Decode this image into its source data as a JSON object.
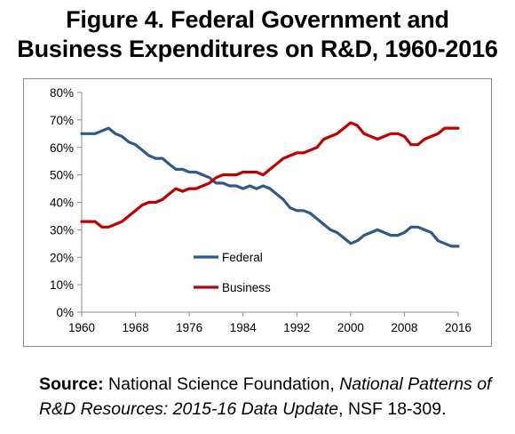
{
  "title_line1": "Figure 4. Federal Government and",
  "title_line2": "Business Expenditures on R&D, 1960-2016",
  "source": {
    "label": "Source:",
    "text1": " National Science Foundation, ",
    "italic": "National Patterns of R&D Resources: 2015-16 Data Update",
    "text2": ", NSF 18-309."
  },
  "chart_data": {
    "type": "line",
    "title": "",
    "xlabel": "",
    "ylabel": "",
    "xlim": [
      1960,
      2016
    ],
    "ylim": [
      0,
      80
    ],
    "x_ticks": [
      1960,
      1968,
      1976,
      1984,
      1992,
      2000,
      2008,
      2016
    ],
    "y_ticks": [
      0,
      10,
      20,
      30,
      40,
      50,
      60,
      70,
      80
    ],
    "y_tick_labels": [
      "0%",
      "10%",
      "20%",
      "30%",
      "40%",
      "50%",
      "60%",
      "70%",
      "80%"
    ],
    "grid": "none",
    "legend_position": "inside-bottom-left",
    "x": [
      1960,
      1961,
      1962,
      1963,
      1964,
      1965,
      1966,
      1967,
      1968,
      1969,
      1970,
      1971,
      1972,
      1973,
      1974,
      1975,
      1976,
      1977,
      1978,
      1979,
      1980,
      1981,
      1982,
      1983,
      1984,
      1985,
      1986,
      1987,
      1988,
      1989,
      1990,
      1991,
      1992,
      1993,
      1994,
      1995,
      1996,
      1997,
      1998,
      1999,
      2000,
      2001,
      2002,
      2003,
      2004,
      2005,
      2006,
      2007,
      2008,
      2009,
      2010,
      2011,
      2012,
      2013,
      2014,
      2015,
      2016
    ],
    "series": [
      {
        "name": "Federal",
        "color": "#2e5a8a",
        "values": [
          65,
          65,
          65,
          66,
          67,
          65,
          64,
          62,
          61,
          59,
          57,
          56,
          56,
          54,
          52,
          52,
          51,
          51,
          50,
          49,
          47,
          47,
          46,
          46,
          45,
          46,
          45,
          46,
          45,
          43,
          41,
          38,
          37,
          37,
          36,
          34,
          32,
          30,
          29,
          27,
          25,
          26,
          28,
          29,
          30,
          29,
          28,
          28,
          29,
          31,
          31,
          30,
          29,
          26,
          25,
          24,
          24
        ]
      },
      {
        "name": "Business",
        "color": "#c00000",
        "values": [
          33,
          33,
          33,
          31,
          31,
          32,
          33,
          35,
          37,
          39,
          40,
          40,
          41,
          43,
          45,
          44,
          45,
          45,
          46,
          47,
          49,
          50,
          50,
          50,
          51,
          51,
          51,
          50,
          52,
          54,
          56,
          57,
          58,
          58,
          59,
          60,
          63,
          64,
          65,
          67,
          69,
          68,
          65,
          64,
          63,
          64,
          65,
          65,
          64,
          61,
          61,
          63,
          64,
          65,
          67,
          67,
          67
        ]
      }
    ]
  }
}
